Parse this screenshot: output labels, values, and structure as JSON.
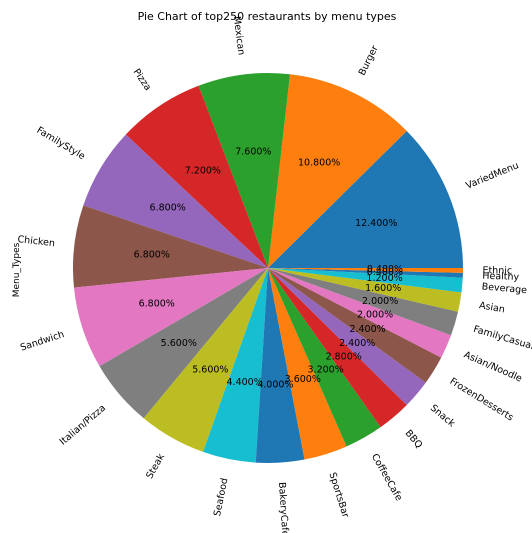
{
  "chart_data": {
    "type": "pie",
    "title": "Pie Chart of top250 restaurants by menu types",
    "ylabel": "Menu_Types",
    "start_angle_deg": 0,
    "direction": "counterclockwise",
    "slices": [
      {
        "label": "VariedMenu",
        "value": 12.4,
        "pct_label": "12.400%",
        "color": "#1f77b4"
      },
      {
        "label": "Burger",
        "value": 10.8,
        "pct_label": "10.800%",
        "color": "#ff7f0e"
      },
      {
        "label": "Mexican",
        "value": 7.6,
        "pct_label": "7.600%",
        "color": "#2ca02c"
      },
      {
        "label": "Pizza",
        "value": 7.2,
        "pct_label": "7.200%",
        "color": "#d62728"
      },
      {
        "label": "FamilyStyle",
        "value": 6.8,
        "pct_label": "6.800%",
        "color": "#9467bd"
      },
      {
        "label": "Chicken",
        "value": 6.8,
        "pct_label": "6.800%",
        "color": "#8c564b"
      },
      {
        "label": "Sandwich",
        "value": 6.8,
        "pct_label": "6.800%",
        "color": "#e377c2"
      },
      {
        "label": "Italian/Pizza",
        "value": 5.6,
        "pct_label": "5.600%",
        "color": "#7f7f7f"
      },
      {
        "label": "Steak",
        "value": 5.6,
        "pct_label": "5.600%",
        "color": "#bcbd22"
      },
      {
        "label": "Seafood",
        "value": 4.4,
        "pct_label": "4.400%",
        "color": "#17becf"
      },
      {
        "label": "BakeryCafe",
        "value": 4.0,
        "pct_label": "4.000%",
        "color": "#1f77b4"
      },
      {
        "label": "SportsBar",
        "value": 3.6,
        "pct_label": "3.600%",
        "color": "#ff7f0e"
      },
      {
        "label": "CoffeeCafe",
        "value": 3.2,
        "pct_label": "3.200%",
        "color": "#2ca02c"
      },
      {
        "label": "BBQ",
        "value": 2.8,
        "pct_label": "2.800%",
        "color": "#d62728"
      },
      {
        "label": "Snack",
        "value": 2.4,
        "pct_label": "2.400%",
        "color": "#9467bd"
      },
      {
        "label": "FrozenDesserts",
        "value": 2.4,
        "pct_label": "2.400%",
        "color": "#8c564b"
      },
      {
        "label": "Asian/Noodle",
        "value": 2.0,
        "pct_label": "2.000%",
        "color": "#e377c2"
      },
      {
        "label": "FamilyCasual",
        "value": 2.0,
        "pct_label": "2.000%",
        "color": "#7f7f7f"
      },
      {
        "label": "Asian",
        "value": 1.6,
        "pct_label": "1.600%",
        "color": "#bcbd22"
      },
      {
        "label": "Beverage",
        "value": 1.2,
        "pct_label": "1.200%",
        "color": "#17becf"
      },
      {
        "label": "Healthy",
        "value": 0.4,
        "pct_label": "0.400%",
        "color": "#1f77b4"
      },
      {
        "label": "Ethnic",
        "value": 0.4,
        "pct_label": "0.400%",
        "color": "#ff7f0e"
      }
    ]
  }
}
